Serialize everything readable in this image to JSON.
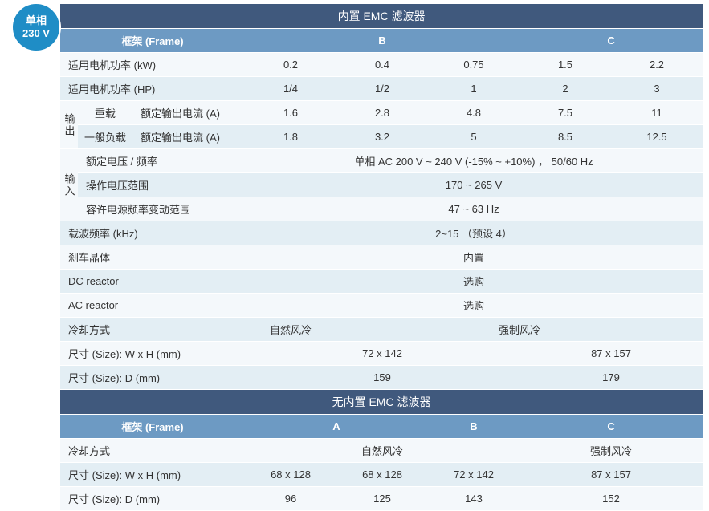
{
  "colors": {
    "title_bg": "#40597d",
    "header_bg": "#6d9ac3",
    "row_light": "#f4f8fb",
    "row_dark": "#e3eef4",
    "badge_bg": "#1f8dc6",
    "text": "#333333"
  },
  "badge": {
    "line1": "单相",
    "line2": "230 V"
  },
  "table1": {
    "title": "内置 EMC 滤波器",
    "hdr_frame": "框架 (Frame)",
    "hdr_b": "B",
    "hdr_c": "C",
    "rows": {
      "kw": {
        "label": "适用电机功率 (kW)",
        "v": [
          "0.2",
          "0.4",
          "0.75",
          "1.5",
          "2.2"
        ]
      },
      "hp": {
        "label": "适用电机功率 (HP)",
        "v": [
          "1/4",
          "1/2",
          "1",
          "2",
          "3"
        ]
      },
      "out_grp": "输出",
      "heavy": {
        "l1": "重载",
        "l2": "额定输出电流 (A)",
        "v": [
          "1.6",
          "2.8",
          "4.8",
          "7.5",
          "11"
        ]
      },
      "normal": {
        "l1": "一般负载",
        "l2": "额定输出电流 (A)",
        "v": [
          "1.8",
          "3.2",
          "5",
          "8.5",
          "12.5"
        ]
      },
      "in_grp": "输入",
      "rated_vf": {
        "label": "额定电压 / 频率",
        "val": "单相 AC 200 V ~ 240 V (-15% ~ +10%) ， 50/60 Hz"
      },
      "op_v": {
        "label": "操作电压范围",
        "val": "170 ~ 265 V"
      },
      "freq_var": {
        "label": "容许电源频率变动范围",
        "val": "47 ~ 63 Hz"
      },
      "carrier": {
        "label": "载波频率 (kHz)",
        "val": "2~15 （预设 4）"
      },
      "brake": {
        "label": "刹车晶体",
        "val": "内置"
      },
      "dcr": {
        "label": "DC reactor",
        "val": "选购"
      },
      "acr": {
        "label": "AC reactor",
        "val": "选购"
      },
      "cool": {
        "label": "冷却方式",
        "v1": "自然风冷",
        "v2": "强制风冷"
      },
      "wh": {
        "label": "尺寸 (Size): W x H (mm)",
        "v1": "72 x 142",
        "v2": "87 x 157"
      },
      "d": {
        "label": "尺寸 (Size): D (mm)",
        "v1": "159",
        "v2": "179"
      }
    }
  },
  "table2": {
    "title": "无内置 EMC 滤波器",
    "hdr_frame": "框架 (Frame)",
    "hdr_a": "A",
    "hdr_b": "B",
    "hdr_c": "C",
    "rows": {
      "cool": {
        "label": "冷却方式",
        "v1": "自然风冷",
        "v2": "强制风冷"
      },
      "wh": {
        "label": "尺寸 (Size): W x H (mm)",
        "v": [
          "68 x 128",
          "68 x 128",
          "72 x 142",
          "87 x 157"
        ]
      },
      "d": {
        "label": "尺寸 (Size): D (mm)",
        "v": [
          "96",
          "125",
          "143",
          "152"
        ]
      }
    }
  }
}
